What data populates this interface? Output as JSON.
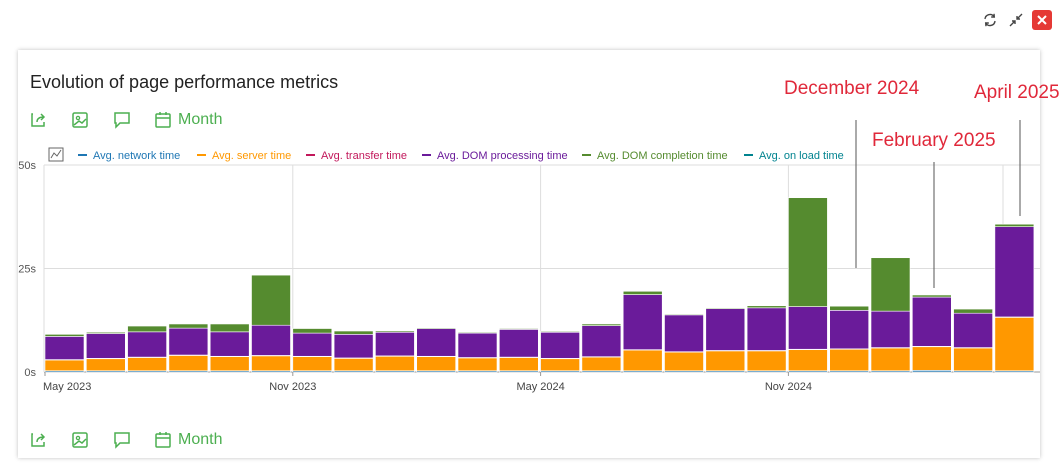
{
  "title": "Evolution of page performance metrics",
  "toolbar": {
    "month_label": "Month"
  },
  "window_controls": [
    "refresh-icon",
    "collapse-icon",
    "close-icon"
  ],
  "annotations": [
    "December 2024",
    "February 2025",
    "April 2025"
  ],
  "chart_data": {
    "type": "bar",
    "stacked": true,
    "ylim": [
      0,
      50
    ],
    "y_ticks": [
      "0s",
      "25s",
      "50s"
    ],
    "x_tick_labels": [
      "May 2023",
      "Nov 2023",
      "May 2024",
      "Nov 2024"
    ],
    "categories": [
      "May 2023",
      "Jun 2023",
      "Jul 2023",
      "Aug 2023",
      "Sep 2023",
      "Oct 2023",
      "Nov 2023",
      "Dec 2023",
      "Jan 2024",
      "Feb 2024",
      "Mar 2024",
      "Apr 2024",
      "May 2024",
      "Jun 2024",
      "Jul 2024",
      "Aug 2024",
      "Sep 2024",
      "Oct 2024",
      "Nov 2024",
      "Dec 2024",
      "Jan 2025",
      "Feb 2025",
      "Mar 2025",
      "Apr 2025"
    ],
    "legend_position": "top-left",
    "series": [
      {
        "name": "Avg. network time",
        "color": "#1f77b4",
        "values": [
          0.3,
          0.3,
          0.3,
          0.3,
          0.3,
          0.3,
          0.3,
          0.3,
          0.3,
          0.3,
          0.3,
          0.3,
          0.3,
          0.3,
          0.3,
          0.3,
          0.3,
          0.3,
          0.3,
          0.3,
          0.3,
          0.4,
          0.3,
          0.3
        ]
      },
      {
        "name": "Avg. server time",
        "color": "#ff9800",
        "values": [
          2.6,
          2.9,
          3.2,
          3.7,
          3.4,
          3.6,
          3.4,
          3.0,
          3.5,
          3.4,
          3.1,
          3.2,
          2.9,
          3.3,
          5.0,
          4.5,
          4.8,
          4.8,
          5.1,
          5.2,
          5.5,
          5.7,
          5.5,
          12.9
        ]
      },
      {
        "name": "Avg. transfer time",
        "color": "#c2185b",
        "values": [
          0.1,
          0.1,
          0.1,
          0.1,
          0.1,
          0.1,
          0.1,
          0.1,
          0.1,
          0.1,
          0.1,
          0.1,
          0.1,
          0.1,
          0.1,
          0.1,
          0.1,
          0.1,
          0.1,
          0.1,
          0.1,
          0.1,
          0.1,
          0.1
        ]
      },
      {
        "name": "Avg. DOM processing time",
        "color": "#6a1b9a",
        "values": [
          5.6,
          6.0,
          6.1,
          6.5,
          5.9,
          7.3,
          5.6,
          5.7,
          5.7,
          6.7,
          5.9,
          6.7,
          6.3,
          7.5,
          13.3,
          8.9,
          10.1,
          10.3,
          10.3,
          9.3,
          8.8,
          11.9,
          8.3,
          21.8
        ]
      },
      {
        "name": "Avg. DOM completion time",
        "color": "#558b2f",
        "values": [
          0.5,
          0.3,
          1.4,
          1.0,
          1.9,
          12.1,
          1.1,
          0.8,
          0.3,
          0.2,
          0.2,
          0.2,
          0.2,
          0.4,
          0.8,
          0.2,
          0.2,
          0.5,
          26.3,
          1.0,
          12.9,
          0.5,
          1.0,
          0.6
        ]
      },
      {
        "name": "Avg. on load time",
        "color": "#00838f",
        "values": [
          0,
          0,
          0,
          0,
          0,
          0,
          0,
          0,
          0,
          0,
          0,
          0,
          0,
          0,
          0,
          0,
          0,
          0,
          0,
          0,
          0,
          0,
          0,
          0
        ]
      }
    ]
  }
}
